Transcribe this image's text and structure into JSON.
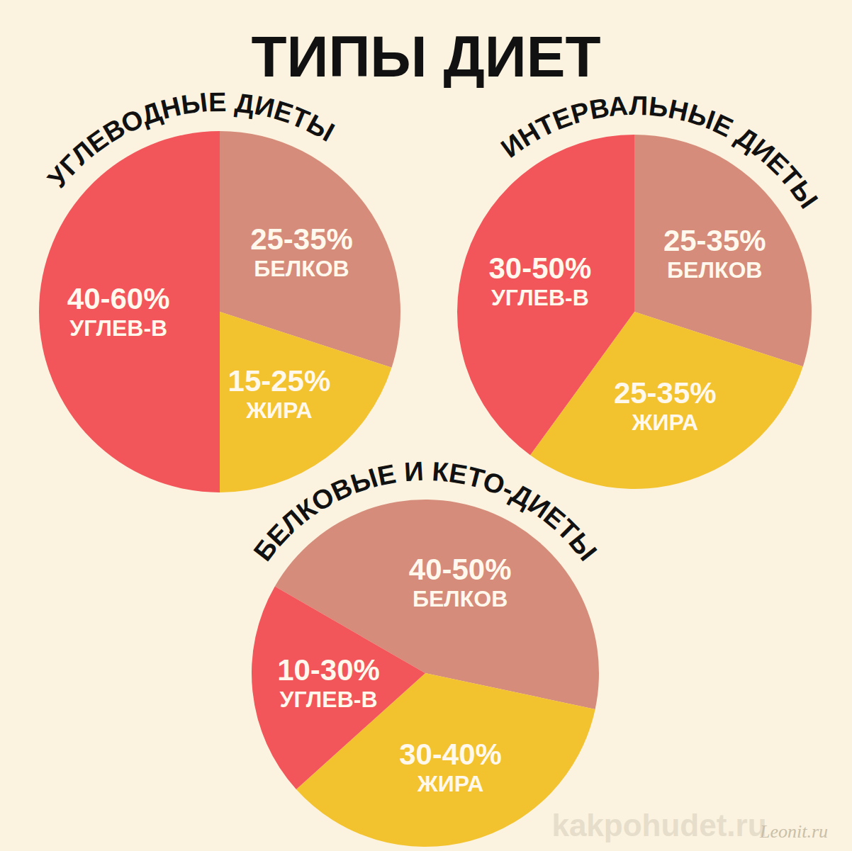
{
  "title": "ТИПЫ ДИЕТ",
  "watermarks": [
    "kakpohudet.ru",
    "Leonit.ru"
  ],
  "chart_data": [
    {
      "type": "pie",
      "title": "УГЛЕВОДНЫЕ ДИЕТЫ",
      "categories": [
        "БЕЛКОВ",
        "ЖИРА",
        "УГЛЕВ-В"
      ],
      "values": [
        30,
        20,
        50
      ],
      "value_labels": [
        "25-35%",
        "15-25%",
        "40-60%"
      ],
      "colors": [
        "#D68C7A",
        "#F3C22F",
        "#F2555A"
      ],
      "data_labels": true
    },
    {
      "type": "pie",
      "title": "ИНТЕРВАЛЬНЫЕ ДИЕТЫ",
      "categories": [
        "БЕЛКОВ",
        "ЖИРА",
        "УГЛЕВ-В"
      ],
      "values": [
        30,
        30,
        40
      ],
      "value_labels": [
        "25-35%",
        "25-35%",
        "30-50%"
      ],
      "colors": [
        "#D68C7A",
        "#F3C22F",
        "#F2555A"
      ],
      "data_labels": true
    },
    {
      "type": "pie",
      "title": "БЕЛКОВЫЕ И КЕТО-ДИЕТЫ",
      "categories": [
        "БЕЛКОВ",
        "ЖИРА",
        "УГЛЕВ-В"
      ],
      "values": [
        45,
        35,
        20
      ],
      "value_labels": [
        "40-50%",
        "30-40%",
        "10-30%"
      ],
      "colors": [
        "#D68C7A",
        "#F3C22F",
        "#F2555A"
      ],
      "data_labels": true
    }
  ]
}
